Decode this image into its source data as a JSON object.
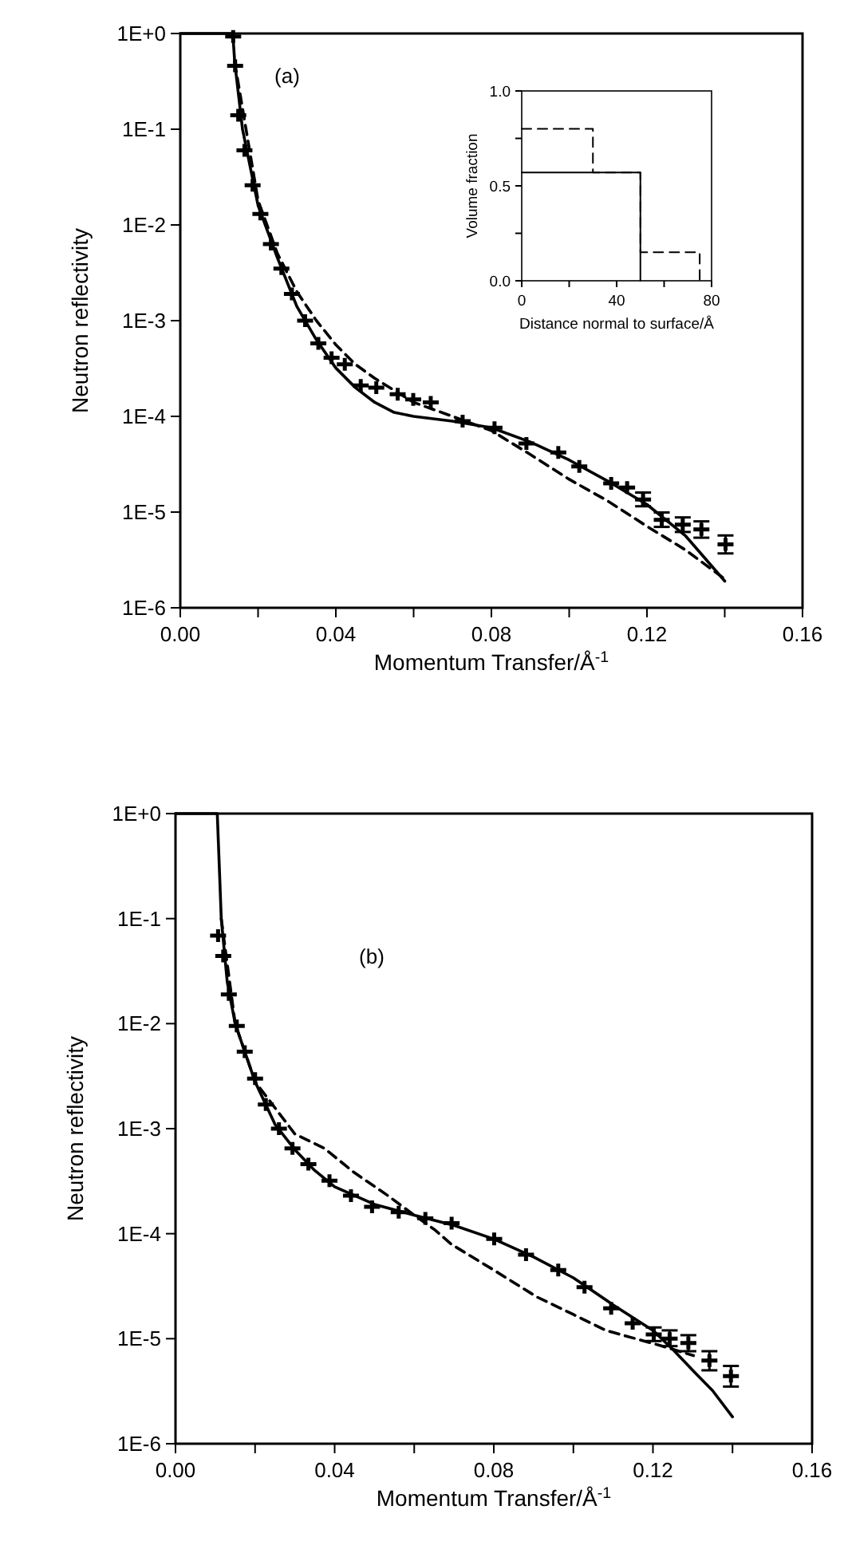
{
  "chart_data": [
    {
      "type": "line",
      "xlabel": "Momentum Transfer/Å$^{-1}$",
      "ylabel": "Neutron reflectivity",
      "annotations": [
        "(a)"
      ],
      "log": true,
      "xlim": [
        0,
        0.16
      ],
      "xticks": [
        {
          "value": 0,
          "label": "0.00"
        },
        {
          "value": 0.02,
          "label": null
        },
        {
          "value": 0.04,
          "label": "0.04"
        },
        {
          "value": 0.06,
          "label": null
        },
        {
          "value": 0.08,
          "label": "0.08"
        },
        {
          "value": 0.1,
          "label": null
        },
        {
          "value": 0.12,
          "label": "0.12"
        },
        {
          "value": 0.14,
          "label": null
        },
        {
          "value": 0.16,
          "label": "0.16"
        }
      ],
      "ylim": [
        1e-06,
        1
      ],
      "yticks": [
        {
          "value": 1,
          "label": "1E+0"
        },
        {
          "value": 0.1,
          "label": "1E-1"
        },
        {
          "value": 0.01,
          "label": "1E-2"
        },
        {
          "value": 0.001,
          "label": "1E-3"
        },
        {
          "value": 0.0001,
          "label": "1E-4"
        },
        {
          "value": 1e-05,
          "label": "1E-5"
        },
        {
          "value": 1e-06,
          "label": "1E-6"
        }
      ],
      "series": [
        {
          "type": "scatter",
          "color": "#000000",
          "marker": "cross",
          "x": [
            0.0136,
            0.0141,
            0.0149,
            0.0165,
            0.0186,
            0.0206,
            0.0233,
            0.026,
            0.0287,
            0.0321,
            0.0355,
            0.0389,
            0.0423,
            0.0464,
            0.0504,
            0.0559,
            0.0599,
            0.0644,
            0.0726,
            0.0808,
            0.089,
            0.0972,
            0.1026,
            0.1108,
            0.1149,
            0.119,
            0.1238,
            0.1292,
            0.134,
            0.1402
          ],
          "values": [
            0.93,
            0.46,
            0.14,
            0.06,
            0.026,
            0.013,
            0.0063,
            0.0035,
            0.0019,
            0.001,
            0.00058,
            0.00041,
            0.00035,
            0.00021,
            0.0002,
            0.00017,
            0.00015,
            0.00014,
            8.9e-05,
            7.6e-05,
            5.2e-05,
            4.2e-05,
            3e-05,
            2e-05,
            1.8e-05,
            1.35e-05,
            8.3e-06,
            7.4e-06,
            6.6e-06,
            4.6e-06
          ],
          "errors": [
            null,
            null,
            null,
            null,
            null,
            null,
            null,
            null,
            null,
            null,
            null,
            null,
            null,
            null,
            null,
            null,
            null,
            null,
            null,
            null,
            null,
            null,
            null,
            null,
            null,
            [
              1.15e-05,
              1.6e-05
            ],
            [
              7e-06,
              9.9e-06
            ],
            [
              6.2e-06,
              8.8e-06
            ],
            [
              5.4e-06,
              8e-06
            ],
            [
              3.7e-06,
              5.7e-06
            ]
          ]
        },
        {
          "color": "#000000",
          "line_style": "solid",
          "x": [
            0,
            0.0135,
            0.014,
            0.016,
            0.02,
            0.025,
            0.03,
            0.035,
            0.04,
            0.045,
            0.05,
            0.055,
            0.06,
            0.07,
            0.08,
            0.09,
            0.1,
            0.11,
            0.12,
            0.13,
            0.14
          ],
          "values": [
            1,
            1,
            0.5,
            0.1,
            0.016,
            0.0045,
            0.0014,
            0.00063,
            0.00032,
            0.0002,
            0.00014,
            0.00011,
            0.0001,
            8.9e-05,
            7.6e-05,
            5.4e-05,
            3.5e-05,
            2.1e-05,
            1.2e-05,
            5.6e-06,
            1.9e-06
          ]
        },
        {
          "color": "#000000",
          "line_style": "dashed",
          "x": [
            0.014,
            0.02,
            0.025,
            0.03,
            0.035,
            0.04,
            0.045,
            0.05,
            0.06,
            0.07,
            0.08,
            0.09,
            0.1,
            0.11,
            0.12,
            0.13,
            0.14
          ],
          "values": [
            0.5,
            0.018,
            0.005,
            0.002,
            0.001,
            0.00056,
            0.00035,
            0.00025,
            0.00014,
            0.0001,
            7.1e-05,
            4e-05,
            2.2e-05,
            1.3e-05,
            7.1e-06,
            4e-06,
            2e-06
          ]
        }
      ]
    },
    {
      "type": "step",
      "xlabel": "Distance normal to surface/Å",
      "ylabel": "Volume fraction",
      "xlim": [
        0,
        80
      ],
      "xticks": [
        0,
        {
          "value": 20,
          "label": null
        },
        40,
        {
          "value": 60,
          "label": null
        },
        80
      ],
      "ylim": [
        0,
        1
      ],
      "yticks": [
        {
          "value": 0,
          "label": "0.0"
        },
        {
          "value": 0.25,
          "label": null
        },
        {
          "value": 0.5,
          "label": "0.5"
        },
        {
          "value": 0.75,
          "label": null
        },
        {
          "value": 1,
          "label": "1.0"
        }
      ],
      "series": [
        {
          "color": "#000000",
          "line_style": "solid",
          "x": [
            0,
            50
          ],
          "values": [
            0.57,
            0
          ]
        },
        {
          "color": "#000000",
          "line_style": "dashed",
          "x": [
            0,
            30,
            50,
            75
          ],
          "values": [
            0.8,
            0.57,
            0.15,
            0
          ]
        }
      ]
    },
    {
      "type": "line",
      "xlabel": "Momentum Transfer/Å$^{-1}$",
      "ylabel": "Neutron reflectivity",
      "annotations": [
        "(b)"
      ],
      "log": true,
      "xlim": [
        0,
        0.16
      ],
      "xticks": [
        {
          "value": 0,
          "label": "0.00"
        },
        {
          "value": 0.02,
          "label": null
        },
        {
          "value": 0.04,
          "label": "0.04"
        },
        {
          "value": 0.06,
          "label": null
        },
        {
          "value": 0.08,
          "label": "0.08"
        },
        {
          "value": 0.1,
          "label": null
        },
        {
          "value": 0.12,
          "label": "0.12"
        },
        {
          "value": 0.14,
          "label": null
        },
        {
          "value": 0.16,
          "label": "0.16"
        }
      ],
      "ylim": [
        1e-06,
        1
      ],
      "yticks": [
        {
          "value": 1,
          "label": "1E+0"
        },
        {
          "value": 0.1,
          "label": "1E-1"
        },
        {
          "value": 0.01,
          "label": "1E-2"
        },
        {
          "value": 0.001,
          "label": "1E-3"
        },
        {
          "value": 0.0001,
          "label": "1E-4"
        },
        {
          "value": 1e-05,
          "label": "1E-5"
        },
        {
          "value": 1e-06,
          "label": "1E-6"
        }
      ],
      "series": [
        {
          "type": "scatter",
          "color": "#000000",
          "marker": "cross",
          "x": [
            0.0107,
            0.012,
            0.0134,
            0.0154,
            0.0174,
            0.02,
            0.0227,
            0.026,
            0.0294,
            0.0334,
            0.0387,
            0.0441,
            0.0494,
            0.0561,
            0.0628,
            0.0694,
            0.0801,
            0.0881,
            0.0962,
            0.1028,
            0.1095,
            0.1149,
            0.1202,
            0.1242,
            0.1289,
            0.1342,
            0.1396
          ],
          "values": [
            0.069,
            0.044,
            0.019,
            0.0095,
            0.0054,
            0.003,
            0.0017,
            0.001,
            0.00065,
            0.00046,
            0.00032,
            0.00023,
            0.00018,
            0.00016,
            0.00014,
            0.000126,
            8.9e-05,
            6.3e-05,
            4.5e-05,
            3.1e-05,
            1.95e-05,
            1.4e-05,
            1.1e-05,
            1e-05,
            9.1e-06,
            6.2e-06,
            4.4e-06
          ],
          "errors": [
            null,
            null,
            null,
            null,
            null,
            null,
            null,
            null,
            null,
            null,
            null,
            null,
            null,
            null,
            null,
            null,
            null,
            null,
            null,
            null,
            null,
            null,
            [
              9.5e-06,
              1.28e-05
            ],
            [
              8.5e-06,
              1.2e-05
            ],
            [
              7.6e-06,
              1.08e-05
            ],
            [
              5e-06,
              7.6e-06
            ],
            [
              3.5e-06,
              5.5e-06
            ]
          ]
        },
        {
          "color": "#000000",
          "line_style": "solid",
          "x": [
            0,
            0.0105,
            0.011,
            0.0115,
            0.013,
            0.015,
            0.02,
            0.025,
            0.03,
            0.035,
            0.04,
            0.05,
            0.06,
            0.07,
            0.08,
            0.09,
            0.1,
            0.11,
            0.12,
            0.125,
            0.13,
            0.135,
            0.14
          ],
          "values": [
            1,
            1,
            0.32,
            0.1,
            0.025,
            0.01,
            0.0028,
            0.0011,
            0.00063,
            0.0004,
            0.00028,
            0.00019,
            0.00015,
            0.00012,
            8.9e-05,
            6e-05,
            3.8e-05,
            2.1e-05,
            1.2e-05,
            7.9e-06,
            5e-06,
            3.2e-06,
            1.8e-06
          ]
        },
        {
          "color": "#000000",
          "line_style": "dashed",
          "x": [
            0.0115,
            0.015,
            0.02,
            0.03,
            0.0374,
            0.045,
            0.0534,
            0.06,
            0.065,
            0.0694,
            0.08,
            0.0908,
            0.1,
            0.1081,
            0.1214,
            0.1302
          ],
          "values": [
            0.1,
            0.01,
            0.0028,
            0.00089,
            0.00065,
            0.00038,
            0.00023,
            0.00015,
            0.00011,
            7.9e-05,
            4.5e-05,
            2.5e-05,
            1.7e-05,
            1.2e-05,
            8.7e-06,
            6.9e-06
          ]
        }
      ]
    }
  ]
}
